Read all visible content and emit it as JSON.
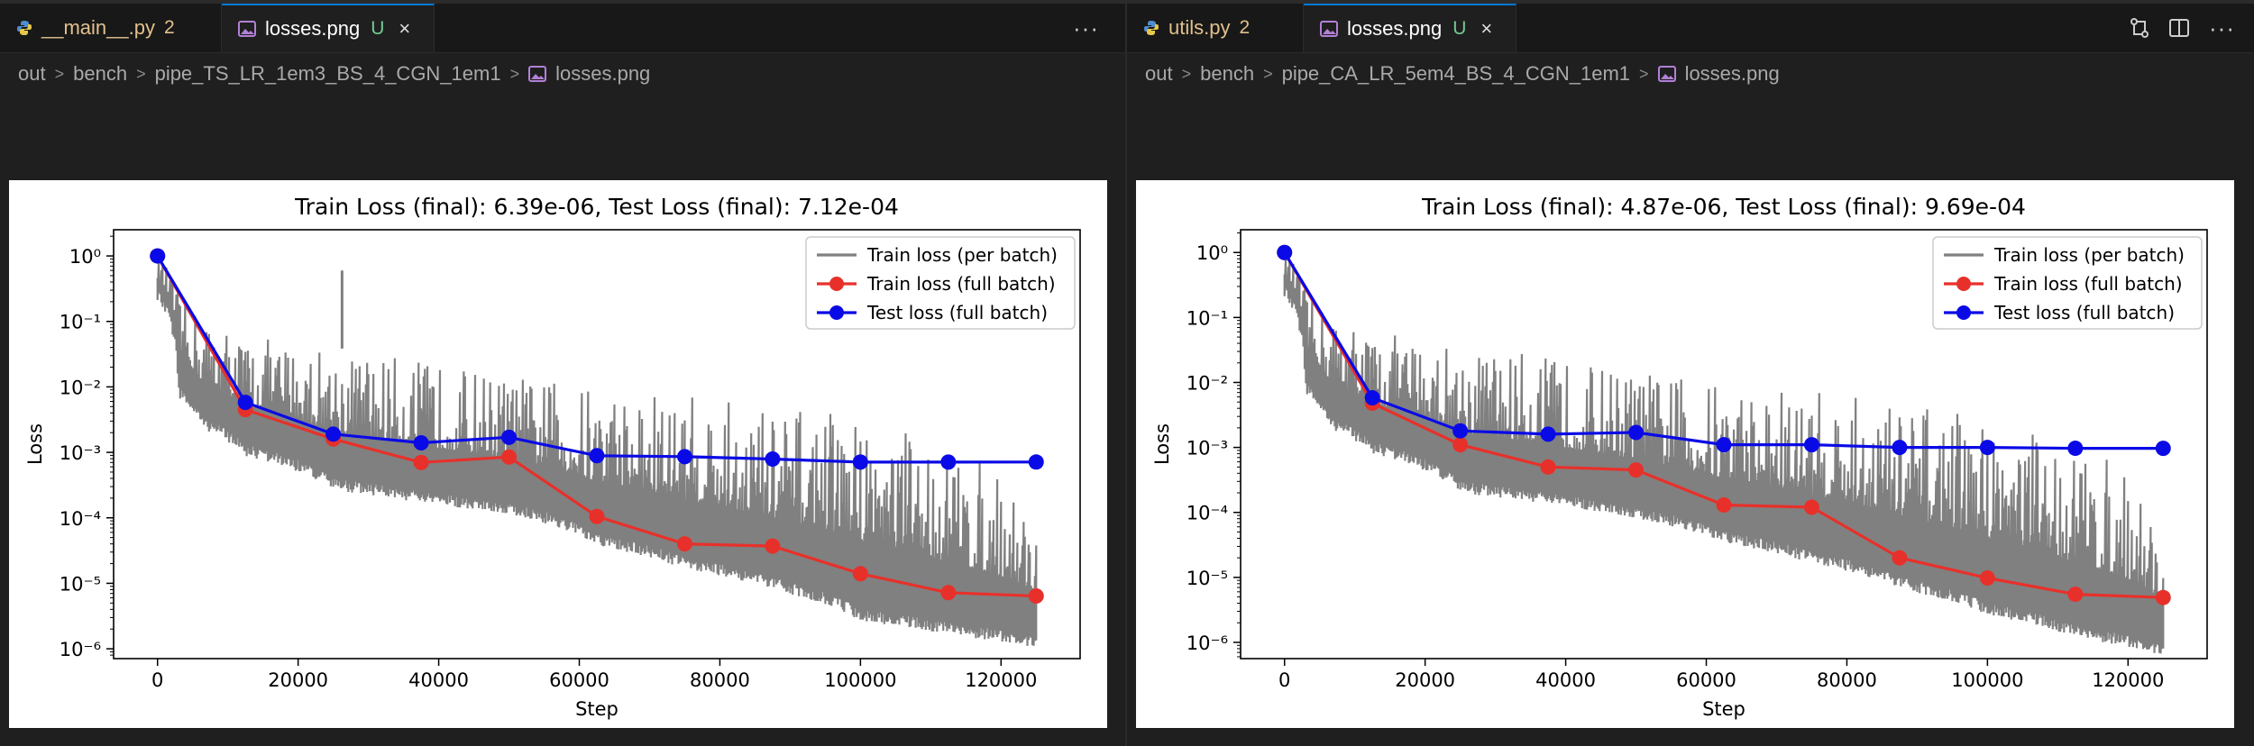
{
  "colors": {
    "train_batch": "#808080",
    "train_full": "#e8302a",
    "test_full": "#0a0ae6",
    "tab_active_border": "#0078d4"
  },
  "left": {
    "tabs": [
      {
        "label": "__main__.py",
        "badge": "2",
        "icon": "python-icon"
      },
      {
        "label": "losses.png",
        "status": "U",
        "icon": "image-icon",
        "close": "×"
      }
    ],
    "more_label": "···",
    "breadcrumb": [
      "out",
      "bench",
      "pipe_TS_LR_1em3_BS_4_CGN_1em1",
      "losses.png"
    ]
  },
  "right": {
    "tabs": [
      {
        "label": "utils.py",
        "badge": "2",
        "icon": "python-icon"
      },
      {
        "label": "losses.png",
        "status": "U",
        "icon": "image-icon",
        "close": "×"
      }
    ],
    "breadcrumb": [
      "out",
      "bench",
      "pipe_CA_LR_5em4_BS_4_CGN_1em1",
      "losses.png"
    ]
  },
  "chart_data": [
    {
      "type": "line",
      "title": "Train Loss (final): 6.39e-06, Test Loss (final): 7.12e-04",
      "xlabel": "Step",
      "ylabel": "Loss",
      "yscale": "log",
      "xlim": [
        -6250,
        131250
      ],
      "ylim_log10": [
        -6.15,
        0.4
      ],
      "xticks": [
        0,
        20000,
        40000,
        60000,
        80000,
        100000,
        120000
      ],
      "xtick_labels": [
        "0",
        "20000",
        "40000",
        "60000",
        "80000",
        "100000",
        "120000"
      ],
      "yticks_exp": [
        0,
        -1,
        -2,
        -3,
        -4,
        -5,
        -6
      ],
      "legend_location": "upper right",
      "legend": [
        "Train loss (per batch)",
        "Train loss (full batch)",
        "Test loss (full batch)"
      ],
      "batch_band": {
        "name": "Train loss (per batch)",
        "x": [
          0,
          3000,
          6250,
          12500,
          25000,
          37500,
          50000,
          62500,
          75000,
          87500,
          100000,
          112500,
          125000
        ],
        "low": [
          0.3,
          0.01,
          0.0035,
          0.0013,
          0.0004,
          0.00025,
          0.00017,
          5.5e-05,
          2.5e-05,
          1.2e-05,
          4e-06,
          2.5e-06,
          1.5e-06
        ],
        "high": [
          1.0,
          0.25,
          0.12,
          0.06,
          0.04,
          0.025,
          0.015,
          0.01,
          0.008,
          0.005,
          0.004,
          0.001,
          0.0001
        ],
        "spike_x": [
          26250
        ],
        "spike_y": [
          0.6
        ]
      },
      "series": [
        {
          "name": "Train loss (full batch)",
          "x": [
            0,
            12500,
            25000,
            37500,
            50000,
            62500,
            75000,
            87500,
            100000,
            112500,
            125000
          ],
          "values": [
            1.0,
            0.0045,
            0.0016,
            0.0007,
            0.00085,
            0.000105,
            4e-05,
            3.7e-05,
            1.4e-05,
            7.2e-06,
            6.4e-06
          ]
        },
        {
          "name": "Test loss (full batch)",
          "x": [
            0,
            12500,
            25000,
            37500,
            50000,
            62500,
            75000,
            87500,
            100000,
            112500,
            125000
          ],
          "values": [
            1.0,
            0.0058,
            0.0019,
            0.0014,
            0.0017,
            0.00089,
            0.00086,
            0.00079,
            0.00071,
            0.00071,
            0.000712
          ]
        }
      ]
    },
    {
      "type": "line",
      "title": "Train Loss (final): 4.87e-06, Test Loss (final): 9.69e-04",
      "xlabel": "Step",
      "ylabel": "Loss",
      "yscale": "log",
      "xlim": [
        -6250,
        131250
      ],
      "ylim_log10": [
        -6.25,
        0.35
      ],
      "xticks": [
        0,
        20000,
        40000,
        60000,
        80000,
        100000,
        120000
      ],
      "xtick_labels": [
        "0",
        "20000",
        "40000",
        "60000",
        "80000",
        "100000",
        "120000"
      ],
      "yticks_exp": [
        0,
        -1,
        -2,
        -3,
        -4,
        -5,
        -6
      ],
      "legend_location": "upper right",
      "legend": [
        "Train loss (per batch)",
        "Train loss (full batch)",
        "Test loss (full batch)"
      ],
      "batch_band": {
        "name": "Train loss (per batch)",
        "x": [
          0,
          3000,
          6250,
          12500,
          25000,
          37500,
          50000,
          62500,
          75000,
          87500,
          100000,
          112500,
          125000
        ],
        "low": [
          0.3,
          0.01,
          0.003,
          0.0012,
          0.0003,
          0.0002,
          0.00012,
          5e-05,
          2.5e-05,
          1e-05,
          4e-06,
          1.8e-06,
          9e-07
        ],
        "high": [
          1.0,
          0.25,
          0.12,
          0.06,
          0.04,
          0.025,
          0.015,
          0.01,
          0.008,
          0.005,
          0.003,
          0.001,
          2e-05
        ],
        "spike_x": [],
        "spike_y": []
      },
      "series": [
        {
          "name": "Train loss (full batch)",
          "x": [
            0,
            12500,
            25000,
            37500,
            50000,
            62500,
            75000,
            87500,
            100000,
            112500,
            125000
          ],
          "values": [
            1.0,
            0.0048,
            0.0011,
            0.0005,
            0.00045,
            0.00013,
            0.00012,
            2e-05,
            9.8e-06,
            5.5e-06,
            4.9e-06
          ]
        },
        {
          "name": "Test loss (full batch)",
          "x": [
            0,
            12500,
            25000,
            37500,
            50000,
            62500,
            75000,
            87500,
            100000,
            112500,
            125000
          ],
          "values": [
            1.0,
            0.0058,
            0.0018,
            0.0016,
            0.0017,
            0.0011,
            0.0011,
            0.001,
            0.001,
            0.00097,
            0.000969
          ]
        }
      ]
    }
  ]
}
